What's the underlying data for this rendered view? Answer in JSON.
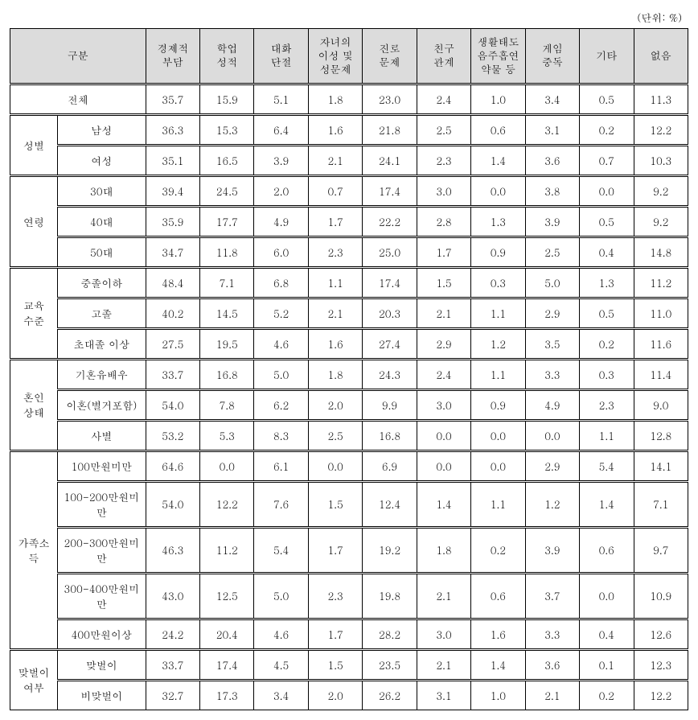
{
  "unit_label": "(단위: %)",
  "columns": {
    "cat": "구분",
    "c0": "경제적\n부담",
    "c1": "학업\n성적",
    "c2": "대화\n단절",
    "c3": "자녀의\n이성 및\n성문제",
    "c4": "진로\n문제",
    "c5": "친구\n관계",
    "c6": "생활태도\n음주흡연\n약물 등",
    "c7": "게임\n중독",
    "c8": "기타",
    "c9": "없음"
  },
  "total": {
    "label": "전체",
    "v": [
      "35.7",
      "15.9",
      "5.1",
      "1.8",
      "23.0",
      "2.4",
      "1.0",
      "3.4",
      "0.5",
      "11.3"
    ]
  },
  "groups": [
    {
      "name": "성별",
      "rows": [
        {
          "label": "남성",
          "v": [
            "36.3",
            "15.3",
            "6.4",
            "1.6",
            "21.8",
            "2.5",
            "0.6",
            "3.1",
            "0.2",
            "12.2"
          ]
        },
        {
          "label": "여성",
          "v": [
            "35.1",
            "16.5",
            "3.9",
            "2.1",
            "24.1",
            "2.3",
            "1.4",
            "3.6",
            "0.7",
            "10.3"
          ]
        }
      ]
    },
    {
      "name": "연령",
      "rows": [
        {
          "label": "30대",
          "v": [
            "39.4",
            "24.5",
            "2.0",
            "0.7",
            "17.4",
            "3.0",
            "0.0",
            "3.8",
            "0.0",
            "9.2"
          ]
        },
        {
          "label": "40대",
          "v": [
            "35.9",
            "17.7",
            "4.9",
            "1.7",
            "22.2",
            "2.8",
            "1.3",
            "3.9",
            "0.5",
            "9.2"
          ]
        },
        {
          "label": "50대",
          "v": [
            "34.7",
            "11.8",
            "6.0",
            "2.3",
            "25.0",
            "1.7",
            "0.9",
            "2.5",
            "0.4",
            "14.8"
          ]
        }
      ]
    },
    {
      "name": "교육\n수준",
      "rows": [
        {
          "label": "중졸이하",
          "v": [
            "48.4",
            "7.1",
            "6.8",
            "1.1",
            "17.4",
            "1.5",
            "0.3",
            "5.0",
            "1.3",
            "11.2"
          ]
        },
        {
          "label": "고졸",
          "v": [
            "40.2",
            "14.5",
            "5.2",
            "2.1",
            "20.3",
            "2.1",
            "1.1",
            "2.9",
            "0.5",
            "11.0"
          ]
        },
        {
          "label": "초대졸 이상",
          "v": [
            "27.5",
            "19.5",
            "4.6",
            "1.6",
            "27.4",
            "2.9",
            "1.2",
            "3.5",
            "0.2",
            "11.6"
          ]
        }
      ]
    },
    {
      "name": "혼인\n상태",
      "rows": [
        {
          "label": "기혼유배우",
          "v": [
            "33.7",
            "16.8",
            "5.0",
            "1.8",
            "24.3",
            "2.4",
            "1.1",
            "3.3",
            "0.3",
            "11.4"
          ]
        },
        {
          "label": "이혼(별거포함)",
          "v": [
            "54.0",
            "7.8",
            "6.2",
            "2.0",
            "9.9",
            "3.0",
            "0.9",
            "4.9",
            "2.3",
            "9.0"
          ]
        },
        {
          "label": "사별",
          "v": [
            "53.2",
            "5.3",
            "8.3",
            "2.5",
            "16.8",
            "0.0",
            "0.0",
            "0.0",
            "1.1",
            "12.8"
          ]
        }
      ]
    },
    {
      "name": "가족소\n득",
      "rows": [
        {
          "label": "100만원미만",
          "v": [
            "64.6",
            "0.0",
            "6.1",
            "0.0",
            "6.9",
            "0.0",
            "0.0",
            "2.9",
            "5.4",
            "14.1"
          ]
        },
        {
          "label": "100-200만원미만",
          "v": [
            "54.0",
            "12.2",
            "7.6",
            "1.5",
            "12.4",
            "1.4",
            "1.1",
            "1.2",
            "1.4",
            "7.1"
          ]
        },
        {
          "label": "200-300만원미만",
          "v": [
            "46.3",
            "11.2",
            "5.4",
            "1.7",
            "19.2",
            "1.8",
            "0.2",
            "3.9",
            "0.6",
            "9.7"
          ]
        },
        {
          "label": "300-400만원미만",
          "v": [
            "43.0",
            "12.5",
            "5.0",
            "2.3",
            "19.8",
            "2.1",
            "0.6",
            "3.7",
            "0.0",
            "10.9"
          ]
        },
        {
          "label": "400만원이상",
          "v": [
            "24.2",
            "20.4",
            "4.6",
            "1.7",
            "28.2",
            "3.0",
            "1.6",
            "3.3",
            "0.4",
            "12.6"
          ]
        }
      ]
    },
    {
      "name": "맞벌이\n여부",
      "rows": [
        {
          "label": "맞벌이",
          "v": [
            "33.7",
            "17.4",
            "4.5",
            "1.5",
            "23.5",
            "2.1",
            "1.4",
            "3.6",
            "0.1",
            "12.3"
          ]
        },
        {
          "label": "비맞벌이",
          "v": [
            "32.7",
            "17.3",
            "3.4",
            "2.0",
            "26.2",
            "3.1",
            "1.0",
            "2.1",
            "0.2",
            "12.2"
          ]
        }
      ]
    }
  ]
}
